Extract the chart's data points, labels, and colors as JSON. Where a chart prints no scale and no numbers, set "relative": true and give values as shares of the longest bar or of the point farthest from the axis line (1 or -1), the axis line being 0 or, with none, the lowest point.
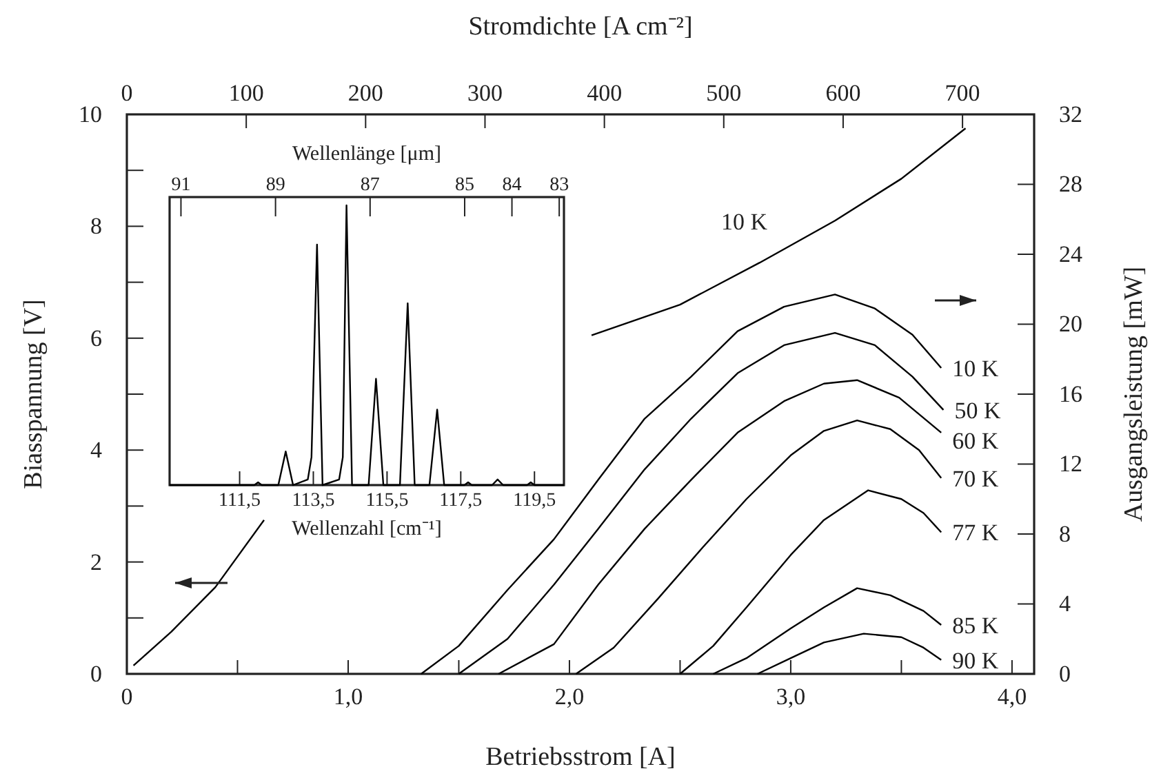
{
  "chart_data": [
    {
      "type": "line",
      "xlabel": "Betriebsstrom [A]",
      "ylabel": "Biasspannung [V]",
      "y2label": "Ausgangsleistung [mW]",
      "x2label": "Stromdichte [A cm⁻²]",
      "xlim": [
        0,
        4.1
      ],
      "xticks": [
        0,
        {
          "value": 0.5,
          "label": null
        },
        {
          "value": 1,
          "label": "1,0"
        },
        {
          "value": 1.5,
          "label": null
        },
        {
          "value": 2,
          "label": "2,0"
        },
        {
          "value": 2.5,
          "label": null
        },
        {
          "value": 3,
          "label": "3,0"
        },
        {
          "value": 3.5,
          "label": null
        },
        {
          "value": 4,
          "label": "4,0"
        }
      ],
      "ylim": [
        0,
        10
      ],
      "yticks": [
        0,
        {
          "value": 1,
          "label": null
        },
        2,
        {
          "value": 3,
          "label": null
        },
        4,
        {
          "value": 5,
          "label": null
        },
        6,
        {
          "value": 7,
          "label": null
        },
        8,
        {
          "value": 9,
          "label": null
        },
        10
      ],
      "y2lim": [
        0,
        32
      ],
      "y2ticks": [
        0,
        4,
        8,
        12,
        16,
        20,
        24,
        28,
        32
      ],
      "x2lim": [
        0,
        760
      ],
      "x2ticks": [
        0,
        100,
        200,
        300,
        400,
        500,
        600,
        700
      ],
      "series": [
        {
          "name": "10 K",
          "color": "#000000",
          "axis": "y",
          "x": [
            0.03,
            0.2,
            0.4,
            0.62,
            1.0,
            2.1,
            2.5,
            2.86,
            3.2,
            3.5,
            3.79
          ],
          "values": [
            0.15,
            0.75,
            1.55,
            2.75,
            null,
            6.05,
            6.6,
            7.35,
            8.1,
            8.85,
            9.75
          ]
        },
        {
          "name": "10 K",
          "color": "#000000",
          "axis": "y2",
          "x": [
            1.33,
            1.5,
            1.72,
            1.93,
            2.13,
            2.34,
            2.55,
            2.76,
            2.97,
            3.2,
            3.38,
            3.55,
            3.68
          ],
          "values": [
            0,
            1.6,
            4.8,
            7.7,
            11.1,
            14.6,
            17.0,
            19.6,
            21.0,
            21.7,
            20.9,
            19.4,
            17.5
          ]
        },
        {
          "name": "50 K",
          "color": "#000000",
          "axis": "y2",
          "x": [
            1.5,
            1.72,
            1.93,
            2.13,
            2.34,
            2.55,
            2.76,
            2.97,
            3.2,
            3.38,
            3.55,
            3.69
          ],
          "values": [
            0,
            2.0,
            5.1,
            8.3,
            11.7,
            14.6,
            17.2,
            18.8,
            19.5,
            18.8,
            17.0,
            15.1
          ]
        },
        {
          "name": "60 K",
          "color": "#000000",
          "axis": "y2",
          "x": [
            1.68,
            1.93,
            2.13,
            2.34,
            2.55,
            2.76,
            2.97,
            3.15,
            3.3,
            3.49,
            3.68
          ],
          "values": [
            0,
            1.7,
            5.1,
            8.3,
            11.1,
            13.8,
            15.6,
            16.6,
            16.8,
            15.8,
            13.8
          ]
        },
        {
          "name": "70 K",
          "color": "#000000",
          "axis": "y2",
          "x": [
            2.03,
            2.2,
            2.4,
            2.6,
            2.8,
            3.0,
            3.15,
            3.3,
            3.45,
            3.58,
            3.68
          ],
          "values": [
            0,
            1.5,
            4.3,
            7.2,
            10.0,
            12.5,
            13.9,
            14.5,
            14.0,
            12.8,
            11.2
          ]
        },
        {
          "name": "77 K",
          "color": "#000000",
          "axis": "y2",
          "x": [
            2.5,
            2.65,
            2.8,
            3.0,
            3.15,
            3.35,
            3.5,
            3.6,
            3.68
          ],
          "values": [
            0,
            1.6,
            3.8,
            6.8,
            8.8,
            10.5,
            10.0,
            9.2,
            8.1
          ]
        },
        {
          "name": "85 K",
          "color": "#000000",
          "axis": "y2",
          "x": [
            2.65,
            2.8,
            3.0,
            3.15,
            3.3,
            3.45,
            3.6,
            3.68
          ],
          "values": [
            0,
            0.9,
            2.6,
            3.8,
            4.9,
            4.5,
            3.6,
            2.8
          ]
        },
        {
          "name": "90 K",
          "color": "#000000",
          "axis": "y2",
          "x": [
            2.85,
            3.0,
            3.15,
            3.33,
            3.5,
            3.6,
            3.68
          ],
          "values": [
            0,
            0.9,
            1.8,
            2.3,
            2.1,
            1.5,
            0.8
          ]
        }
      ]
    },
    {
      "type": "line",
      "relative": true,
      "xlabel": "Wellenzahl [cm⁻¹]",
      "x2label": "Wellenlänge [μm]",
      "xlim": [
        109.6,
        120.3
      ],
      "xticks": [
        {
          "value": 111.5,
          "label": "111,5"
        },
        {
          "value": 113.5,
          "label": "113,5"
        },
        {
          "value": 115.5,
          "label": "115,5"
        },
        {
          "value": 117.5,
          "label": "117,5"
        },
        {
          "value": 119.5,
          "label": "119,5"
        }
      ],
      "x2lim": [
        91.24,
        82.9
      ],
      "x2ticks": [
        91,
        89,
        87,
        85,
        84,
        83
      ],
      "series": [
        {
          "color": "#000000",
          "x": [
            109.6,
            111.9,
            112.0,
            112.1,
            112.55,
            112.75,
            112.95,
            113.35,
            113.45,
            113.6,
            113.75,
            114.2,
            114.3,
            114.4,
            114.55,
            115.0,
            115.2,
            115.4,
            115.85,
            116.06,
            116.25,
            116.65,
            116.86,
            117.05,
            117.6,
            117.7,
            117.8,
            118.35,
            118.5,
            118.65,
            119.3,
            119.4,
            119.5,
            120.3
          ],
          "values": [
            0,
            0,
            0.01,
            0,
            0,
            0.12,
            0,
            0.02,
            0.1,
            0.86,
            0,
            0.02,
            0.1,
            1,
            0,
            0,
            0.38,
            0,
            0,
            0.65,
            0,
            0,
            0.27,
            0,
            0,
            0.01,
            0,
            0,
            0.02,
            0,
            0,
            0.01,
            0,
            0
          ]
        }
      ]
    }
  ]
}
